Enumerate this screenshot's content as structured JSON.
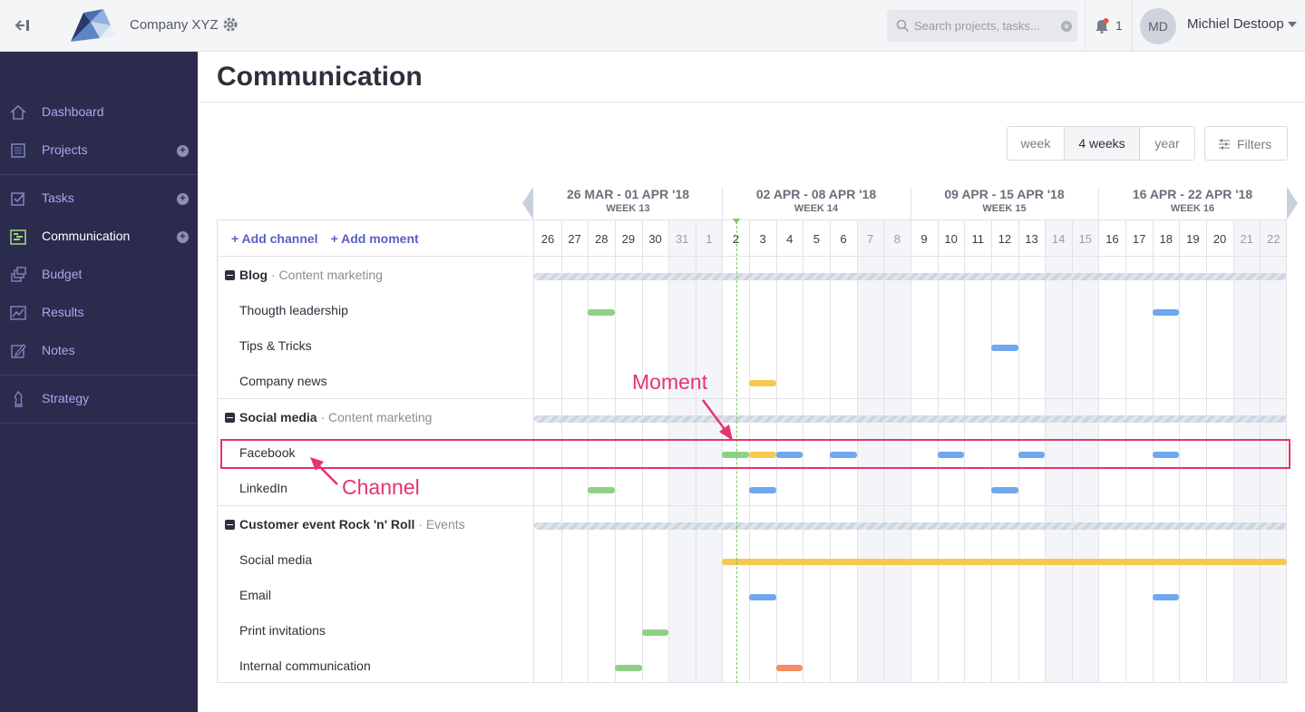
{
  "topbar": {
    "company_name": "Company XYZ",
    "search_placeholder": "Search projects, tasks...",
    "notification_count": "1",
    "avatar_initials": "MD",
    "user_name": "Michiel Destoop"
  },
  "sidebar": {
    "items": [
      {
        "label": "Dashboard",
        "icon": "home-icon"
      },
      {
        "label": "Projects",
        "icon": "projects-icon"
      },
      {
        "label": "Tasks",
        "icon": "tasks-icon"
      },
      {
        "label": "Communication",
        "icon": "communication-icon"
      },
      {
        "label": "Budget",
        "icon": "budget-icon"
      },
      {
        "label": "Results",
        "icon": "results-icon"
      },
      {
        "label": "Notes",
        "icon": "notes-icon"
      },
      {
        "label": "Strategy",
        "icon": "strategy-icon"
      }
    ],
    "active": "Communication"
  },
  "page": {
    "title": "Communication"
  },
  "view_toggle": {
    "options": [
      "week",
      "4 weeks",
      "year"
    ],
    "selected": "4 weeks"
  },
  "filters_label": "Filters",
  "timeline": {
    "add_channel": "+ Add channel",
    "add_moment": "+ Add moment",
    "weeks": [
      {
        "range": "26 MAR - 01 APR '18",
        "week": "WEEK 13"
      },
      {
        "range": "02 APR - 08 APR '18",
        "week": "WEEK 14"
      },
      {
        "range": "09 APR - 15 APR '18",
        "week": "WEEK 15"
      },
      {
        "range": "16 APR - 22 APR '18",
        "week": "WEEK 16"
      }
    ],
    "days": [
      "26",
      "27",
      "28",
      "29",
      "30",
      "31",
      "1",
      "2",
      "3",
      "4",
      "5",
      "6",
      "7",
      "8",
      "9",
      "10",
      "11",
      "12",
      "13",
      "14",
      "15",
      "16",
      "17",
      "18",
      "19",
      "20",
      "21",
      "22"
    ],
    "groups": [
      {
        "name": "Blog",
        "category": "· Content marketing",
        "channels": [
          "Thougth leadership",
          "Tips & Tricks",
          "Company news"
        ]
      },
      {
        "name": "Social media",
        "category": "· Content marketing",
        "channels": [
          "Facebook",
          "LinkedIn"
        ]
      },
      {
        "name": "Customer event Rock 'n' Roll",
        "category": "· Events",
        "channels": [
          "Social media",
          "Email",
          "Print invitations",
          "Internal communication"
        ]
      }
    ],
    "colors": {
      "green": "#8fd184",
      "blue": "#6fa8ec",
      "yellow": "#f5c94f",
      "orange": "#f58e63"
    }
  },
  "annotations": {
    "moment": "Moment",
    "channel": "Channel"
  }
}
